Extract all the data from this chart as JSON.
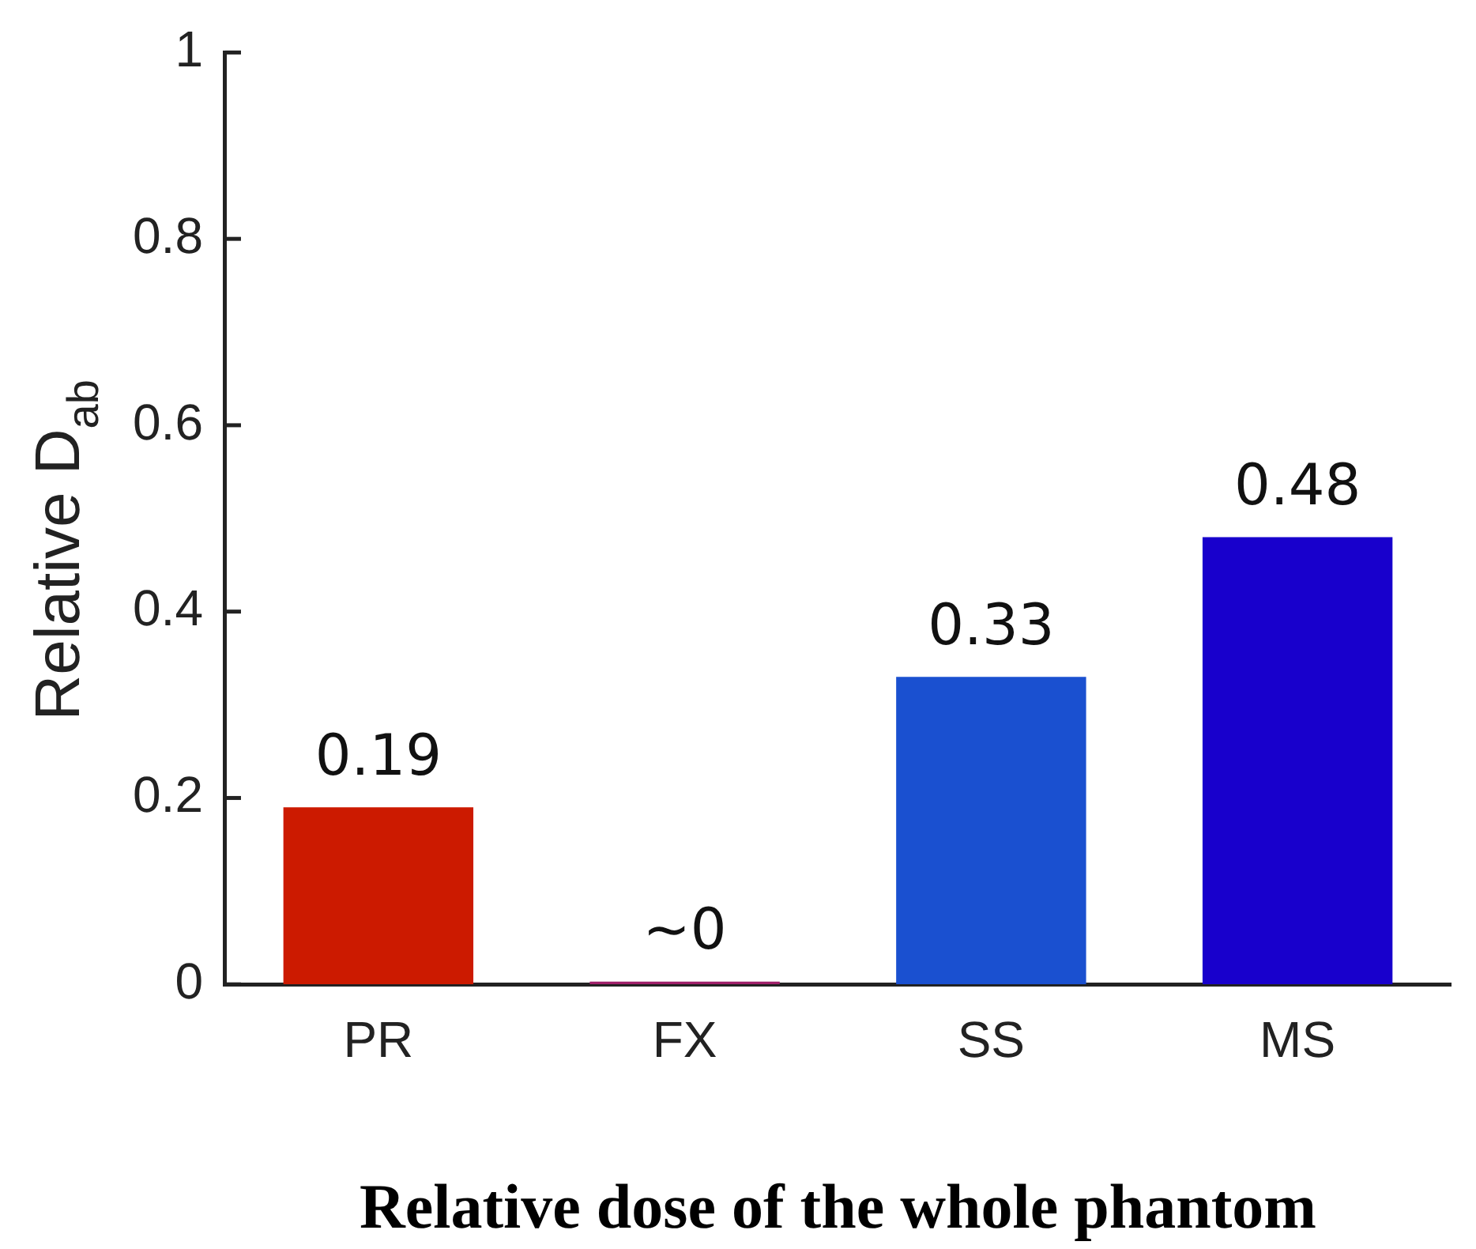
{
  "chart_data": {
    "type": "bar",
    "xlabel": "Relative dose of the whole phantom",
    "ylabel": "Relative D$_{ab}$",
    "categories": [
      "PR",
      "FX",
      "SS",
      "MS"
    ],
    "values": [
      0.19,
      0.003,
      0.33,
      0.48
    ],
    "colors": [
      "#cc1a00",
      "#a0206a",
      "#1a50d0",
      "#1800cc"
    ],
    "value_labels": [
      "0.19",
      "~0",
      "0.33",
      "0.48"
    ],
    "ylim": [
      0,
      1
    ],
    "yticks": [
      0,
      0.2,
      0.4,
      0.6,
      0.8,
      1
    ],
    "grid": false,
    "legend": false
  }
}
